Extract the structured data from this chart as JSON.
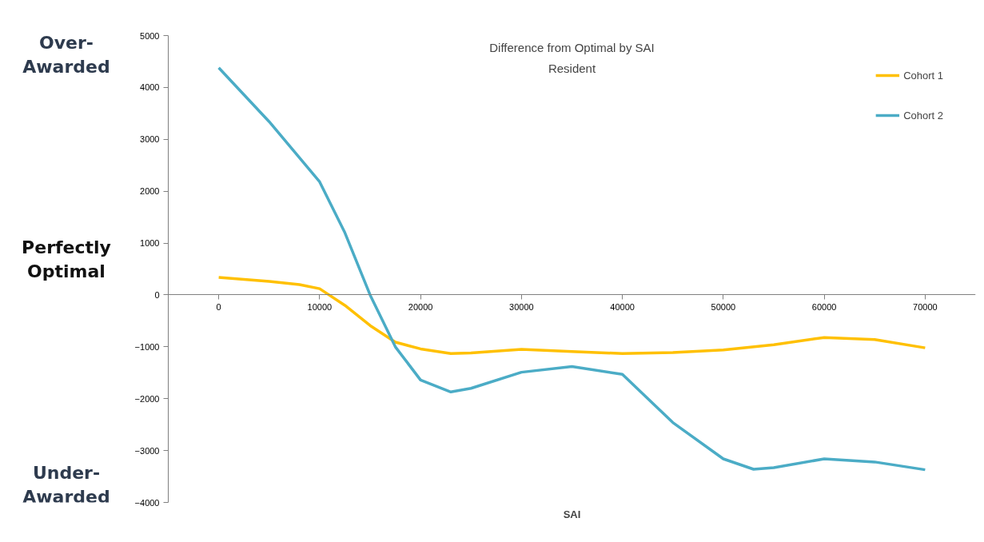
{
  "chart_data": {
    "type": "line",
    "title": "Difference from Optimal by SAI",
    "subtitle": "Resident",
    "xlabel": "SAI",
    "annotations": [
      "Over-\nAwarded",
      "Perfectly\nOptimal",
      "Under-\nAwarded"
    ],
    "xlim": [
      -5000,
      75000
    ],
    "xticks": [
      0,
      10000,
      20000,
      30000,
      40000,
      50000,
      60000,
      70000
    ],
    "ylim": [
      -4000,
      5000
    ],
    "yticks": [
      -4000,
      -3000,
      -2000,
      -1000,
      0,
      1000,
      2000,
      3000,
      4000,
      5000
    ],
    "grid": false,
    "legend": "top right",
    "marker": "none",
    "line_style": "solid",
    "series": [
      {
        "name": "Cohort 1",
        "color": "#ffc000",
        "x": [
          0,
          5000,
          8000,
          10000,
          12500,
          15000,
          17500,
          20000,
          23000,
          25000,
          30000,
          35000,
          40000,
          45000,
          50000,
          55000,
          60000,
          65000,
          70000
        ],
        "values": [
          340,
          260,
          200,
          120,
          -200,
          -590,
          -910,
          -1040,
          -1130,
          -1120,
          -1050,
          -1090,
          -1130,
          -1110,
          -1060,
          -960,
          -820,
          -860,
          -1020
        ]
      },
      {
        "name": "Cohort 2",
        "color": "#4bacc6",
        "x": [
          0,
          5000,
          10000,
          12500,
          15000,
          17500,
          20000,
          23000,
          25000,
          30000,
          35000,
          40000,
          45000,
          50000,
          53000,
          55000,
          60000,
          65000,
          70000
        ],
        "values": [
          4380,
          3340,
          2180,
          1200,
          0,
          -1000,
          -1640,
          -1870,
          -1800,
          -1490,
          -1380,
          -1530,
          -2460,
          -3160,
          -3360,
          -3330,
          -3160,
          -3220,
          -3370
        ]
      }
    ]
  }
}
